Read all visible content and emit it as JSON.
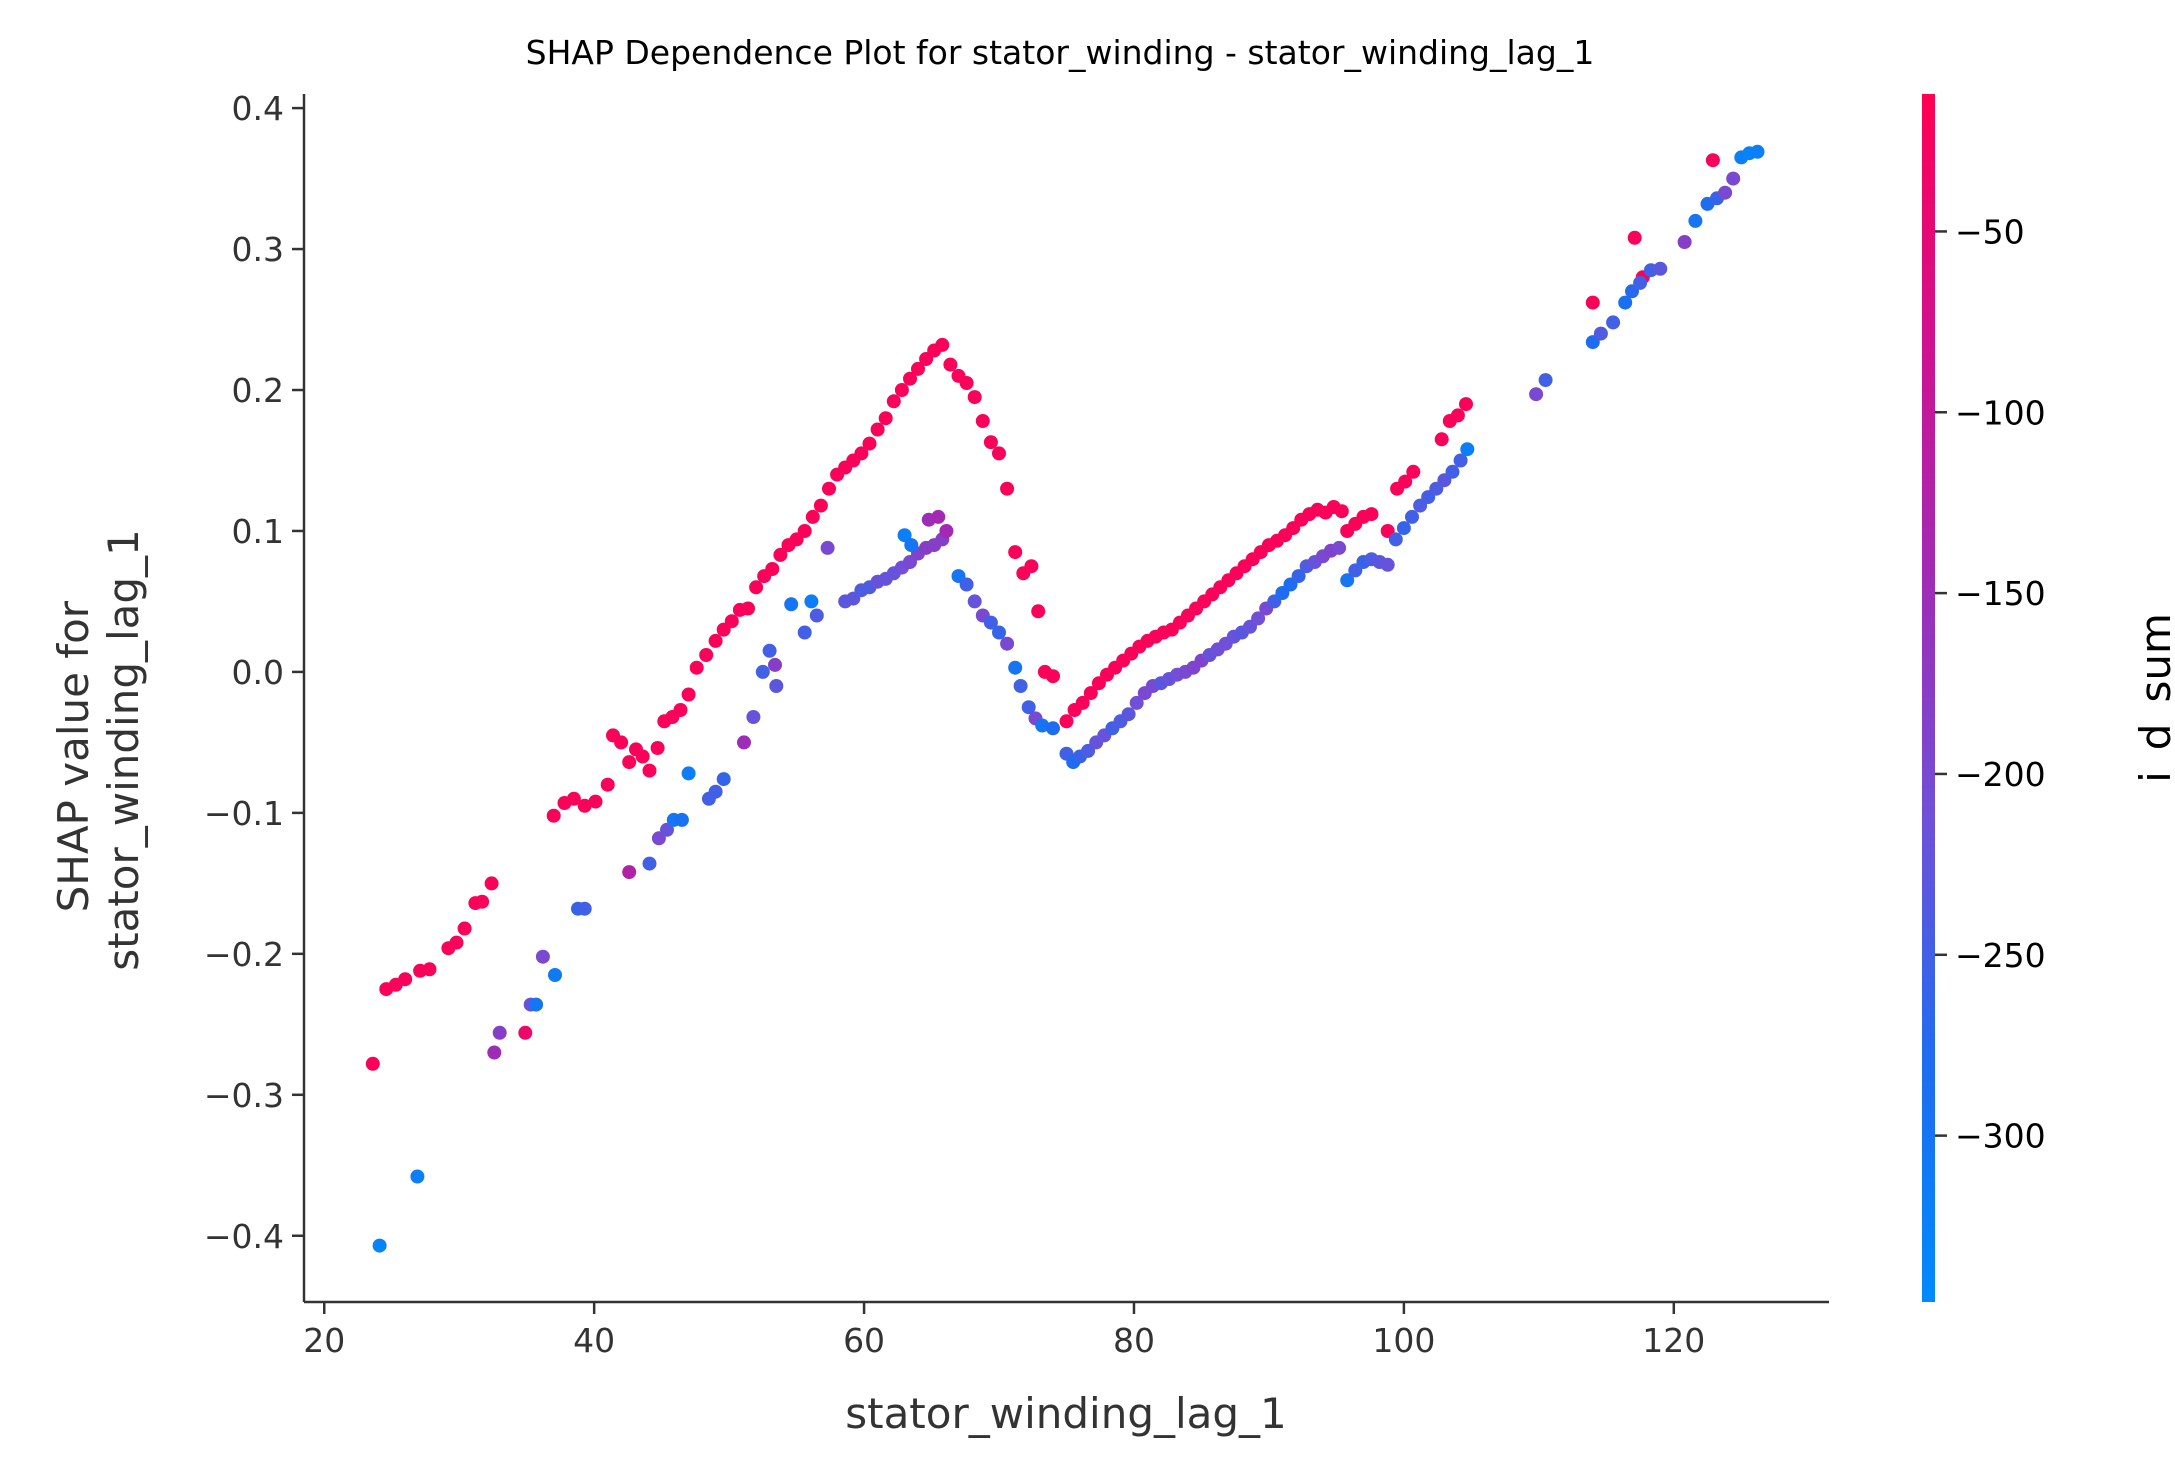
{
  "chart_data": {
    "type": "scatter",
    "title": "SHAP Dependence Plot for stator_winding - stator_winding_lag_1",
    "xlabel": "stator_winding_lag_1",
    "ylabel_lines": [
      "SHAP value for",
      "stator_winding_lag_1"
    ],
    "xlim": [
      18.5,
      131.5
    ],
    "ylim": [
      -0.447,
      0.41
    ],
    "xticks": [
      20,
      40,
      60,
      80,
      100,
      120
    ],
    "xtick_labels": [
      "20",
      "40",
      "60",
      "80",
      "100",
      "120"
    ],
    "yticks": [
      0.4,
      0.3,
      0.2,
      0.1,
      0.0,
      -0.1,
      -0.2,
      -0.3,
      -0.4
    ],
    "ytick_labels": [
      "0.4",
      "0.3",
      "0.2",
      "0.1",
      "0.0",
      "−0.1",
      "−0.2",
      "−0.3",
      "−0.4"
    ],
    "grid": false,
    "colorbar": {
      "label": "i_d_sum",
      "range": [
        -346,
        -12
      ],
      "ticks": [
        -50,
        -100,
        -150,
        -200,
        -250,
        -300
      ],
      "tick_labels": [
        "−50",
        "−100",
        "−150",
        "−200",
        "−250",
        "−300"
      ],
      "colors": [
        "#008afb",
        "#1e6cf0",
        "#7050d8",
        "#a02bb5",
        "#d1108e",
        "#ff0052"
      ]
    },
    "points": [
      [
        23.6,
        -0.278,
        -20
      ],
      [
        24.6,
        -0.225,
        -20
      ],
      [
        25.3,
        -0.222,
        -20
      ],
      [
        26.0,
        -0.218,
        -20
      ],
      [
        27.1,
        -0.212,
        -20
      ],
      [
        27.8,
        -0.211,
        -20
      ],
      [
        29.2,
        -0.196,
        -20
      ],
      [
        29.8,
        -0.192,
        -20
      ],
      [
        30.4,
        -0.182,
        -20
      ],
      [
        31.2,
        -0.164,
        -20
      ],
      [
        31.7,
        -0.163,
        -20
      ],
      [
        32.4,
        -0.15,
        -20
      ],
      [
        34.9,
        -0.256,
        -40
      ],
      [
        37.0,
        -0.102,
        -20
      ],
      [
        37.8,
        -0.093,
        -20
      ],
      [
        38.5,
        -0.09,
        -20
      ],
      [
        39.3,
        -0.095,
        -20
      ],
      [
        40.1,
        -0.092,
        -20
      ],
      [
        41.0,
        -0.08,
        -20
      ],
      [
        41.4,
        -0.045,
        -20
      ],
      [
        42.0,
        -0.05,
        -20
      ],
      [
        42.6,
        -0.064,
        -20
      ],
      [
        43.1,
        -0.055,
        -20
      ],
      [
        43.6,
        -0.06,
        -20
      ],
      [
        44.1,
        -0.07,
        -20
      ],
      [
        44.7,
        -0.054,
        -20
      ],
      [
        45.2,
        -0.035,
        -20
      ],
      [
        45.8,
        -0.032,
        -20
      ],
      [
        46.4,
        -0.027,
        -20
      ],
      [
        47.0,
        -0.016,
        -20
      ],
      [
        47.6,
        0.003,
        -20
      ],
      [
        48.3,
        0.012,
        -20
      ],
      [
        49.0,
        0.022,
        -20
      ],
      [
        49.6,
        0.03,
        -20
      ],
      [
        50.2,
        0.036,
        -20
      ],
      [
        50.8,
        0.044,
        -20
      ],
      [
        51.4,
        0.045,
        -20
      ],
      [
        52.0,
        0.06,
        -20
      ],
      [
        52.6,
        0.068,
        -20
      ],
      [
        53.2,
        0.073,
        -20
      ],
      [
        53.8,
        0.083,
        -20
      ],
      [
        54.4,
        0.09,
        -20
      ],
      [
        55.0,
        0.094,
        -20
      ],
      [
        55.6,
        0.1,
        -20
      ],
      [
        56.2,
        0.11,
        -20
      ],
      [
        56.8,
        0.118,
        -20
      ],
      [
        57.4,
        0.13,
        -20
      ],
      [
        58.0,
        0.14,
        -20
      ],
      [
        58.6,
        0.145,
        -20
      ],
      [
        59.2,
        0.15,
        -20
      ],
      [
        59.8,
        0.155,
        -20
      ],
      [
        60.4,
        0.162,
        -20
      ],
      [
        61.0,
        0.172,
        -20
      ],
      [
        61.6,
        0.18,
        -20
      ],
      [
        62.2,
        0.192,
        -20
      ],
      [
        62.8,
        0.2,
        -20
      ],
      [
        63.4,
        0.208,
        -20
      ],
      [
        64.0,
        0.215,
        -20
      ],
      [
        64.6,
        0.222,
        -20
      ],
      [
        65.2,
        0.228,
        -20
      ],
      [
        65.8,
        0.232,
        -20
      ],
      [
        66.4,
        0.218,
        -20
      ],
      [
        67.0,
        0.21,
        -20
      ],
      [
        67.6,
        0.205,
        -20
      ],
      [
        68.2,
        0.195,
        -20
      ],
      [
        68.8,
        0.178,
        -20
      ],
      [
        69.4,
        0.163,
        -20
      ],
      [
        70.0,
        0.155,
        -20
      ],
      [
        70.6,
        0.13,
        -20
      ],
      [
        71.2,
        0.085,
        -20
      ],
      [
        71.8,
        0.07,
        -20
      ],
      [
        72.4,
        0.075,
        -20
      ],
      [
        72.9,
        0.043,
        -20
      ],
      [
        73.4,
        0.0,
        -20
      ],
      [
        74.0,
        -0.003,
        -20
      ],
      [
        75.0,
        -0.035,
        -20
      ],
      [
        75.6,
        -0.027,
        -20
      ],
      [
        76.2,
        -0.022,
        -20
      ],
      [
        76.8,
        -0.015,
        -20
      ],
      [
        77.4,
        -0.008,
        -20
      ],
      [
        78.0,
        -0.002,
        -20
      ],
      [
        78.6,
        0.003,
        -20
      ],
      [
        79.2,
        0.008,
        -20
      ],
      [
        79.8,
        0.013,
        -20
      ],
      [
        80.4,
        0.018,
        -20
      ],
      [
        81.0,
        0.022,
        -20
      ],
      [
        81.6,
        0.025,
        -20
      ],
      [
        82.2,
        0.028,
        -20
      ],
      [
        82.8,
        0.03,
        -20
      ],
      [
        83.4,
        0.035,
        -20
      ],
      [
        84.0,
        0.04,
        -20
      ],
      [
        84.6,
        0.045,
        -20
      ],
      [
        85.2,
        0.05,
        -20
      ],
      [
        85.8,
        0.055,
        -20
      ],
      [
        86.4,
        0.06,
        -20
      ],
      [
        87.0,
        0.065,
        -20
      ],
      [
        87.6,
        0.07,
        -20
      ],
      [
        88.2,
        0.075,
        -20
      ],
      [
        88.8,
        0.08,
        -20
      ],
      [
        89.4,
        0.085,
        -20
      ],
      [
        90.0,
        0.09,
        -20
      ],
      [
        90.6,
        0.093,
        -20
      ],
      [
        91.2,
        0.097,
        -20
      ],
      [
        91.8,
        0.102,
        -20
      ],
      [
        92.4,
        0.108,
        -20
      ],
      [
        93.0,
        0.112,
        -20
      ],
      [
        93.6,
        0.115,
        -20
      ],
      [
        94.2,
        0.113,
        -20
      ],
      [
        94.8,
        0.117,
        -20
      ],
      [
        95.4,
        0.114,
        -20
      ],
      [
        95.8,
        0.1,
        -20
      ],
      [
        96.4,
        0.105,
        -20
      ],
      [
        97.0,
        0.11,
        -20
      ],
      [
        97.6,
        0.112,
        -20
      ],
      [
        98.8,
        0.1,
        -20
      ],
      [
        99.5,
        0.13,
        -20
      ],
      [
        100.1,
        0.135,
        -20
      ],
      [
        100.7,
        0.142,
        -20
      ],
      [
        102.8,
        0.165,
        -20
      ],
      [
        103.4,
        0.178,
        -20
      ],
      [
        104.0,
        0.182,
        -20
      ],
      [
        104.6,
        0.19,
        -20
      ],
      [
        114.0,
        0.262,
        -20
      ],
      [
        117.1,
        0.308,
        -20
      ],
      [
        117.7,
        0.28,
        -20
      ],
      [
        122.9,
        0.363,
        -20
      ],
      [
        24.1,
        -0.407,
        -330
      ],
      [
        26.9,
        -0.358,
        -320
      ],
      [
        32.6,
        -0.27,
        -150
      ],
      [
        33.0,
        -0.256,
        -180
      ],
      [
        35.3,
        -0.236,
        -220
      ],
      [
        35.7,
        -0.236,
        -300
      ],
      [
        36.2,
        -0.202,
        -200
      ],
      [
        37.1,
        -0.215,
        -310
      ],
      [
        38.8,
        -0.168,
        -260
      ],
      [
        39.3,
        -0.168,
        -250
      ],
      [
        42.6,
        -0.142,
        -120
      ],
      [
        44.1,
        -0.136,
        -250
      ],
      [
        44.8,
        -0.118,
        -200
      ],
      [
        45.4,
        -0.112,
        -220
      ],
      [
        45.9,
        -0.105,
        -300
      ],
      [
        46.5,
        -0.105,
        -290
      ],
      [
        47.0,
        -0.072,
        -320
      ],
      [
        48.5,
        -0.09,
        -250
      ],
      [
        49.0,
        -0.085,
        -250
      ],
      [
        49.6,
        -0.076,
        -260
      ],
      [
        51.1,
        -0.05,
        -150
      ],
      [
        51.8,
        -0.032,
        -220
      ],
      [
        52.5,
        0.0,
        -250
      ],
      [
        53.0,
        0.015,
        -250
      ],
      [
        53.4,
        0.005,
        -180
      ],
      [
        53.5,
        -0.01,
        -230
      ],
      [
        54.6,
        0.048,
        -300
      ],
      [
        55.6,
        0.028,
        -250
      ],
      [
        56.1,
        0.05,
        -320
      ],
      [
        56.5,
        0.04,
        -240
      ],
      [
        57.3,
        0.088,
        -200
      ],
      [
        58.6,
        0.05,
        -230
      ],
      [
        59.2,
        0.052,
        -230
      ],
      [
        59.8,
        0.058,
        -240
      ],
      [
        60.4,
        0.06,
        -240
      ],
      [
        61.0,
        0.064,
        -220
      ],
      [
        61.6,
        0.066,
        -220
      ],
      [
        62.2,
        0.07,
        -220
      ],
      [
        62.8,
        0.074,
        -210
      ],
      [
        63.4,
        0.078,
        -200
      ],
      [
        64.0,
        0.084,
        -190
      ],
      [
        64.6,
        0.088,
        -180
      ],
      [
        65.2,
        0.09,
        -180
      ],
      [
        65.8,
        0.094,
        -180
      ],
      [
        63.0,
        0.097,
        -320
      ],
      [
        63.5,
        0.09,
        -300
      ],
      [
        64.8,
        0.108,
        -150
      ],
      [
        65.5,
        0.11,
        -140
      ],
      [
        66.1,
        0.1,
        -140
      ],
      [
        67.0,
        0.068,
        -300
      ],
      [
        67.6,
        0.062,
        -250
      ],
      [
        68.2,
        0.05,
        -220
      ],
      [
        68.8,
        0.04,
        -200
      ],
      [
        69.4,
        0.035,
        -250
      ],
      [
        70.0,
        0.028,
        -260
      ],
      [
        70.6,
        0.02,
        -200
      ],
      [
        71.2,
        0.003,
        -300
      ],
      [
        71.6,
        -0.01,
        -250
      ],
      [
        72.2,
        -0.025,
        -250
      ],
      [
        72.7,
        -0.033,
        -200
      ],
      [
        73.2,
        -0.038,
        -300
      ],
      [
        74.0,
        -0.04,
        -280
      ],
      [
        75.0,
        -0.058,
        -250
      ],
      [
        75.5,
        -0.064,
        -280
      ],
      [
        76.0,
        -0.06,
        -260
      ],
      [
        76.6,
        -0.056,
        -240
      ],
      [
        77.2,
        -0.05,
        -220
      ],
      [
        77.8,
        -0.045,
        -220
      ],
      [
        78.4,
        -0.04,
        -250
      ],
      [
        79.0,
        -0.035,
        -240
      ],
      [
        79.6,
        -0.03,
        -230
      ],
      [
        80.2,
        -0.022,
        -210
      ],
      [
        80.8,
        -0.015,
        -200
      ],
      [
        81.4,
        -0.01,
        -200
      ],
      [
        82.0,
        -0.008,
        -230
      ],
      [
        82.6,
        -0.005,
        -220
      ],
      [
        83.2,
        -0.002,
        -210
      ],
      [
        83.8,
        0.0,
        -200
      ],
      [
        84.4,
        0.003,
        -190
      ],
      [
        85.0,
        0.008,
        -190
      ],
      [
        85.6,
        0.012,
        -220
      ],
      [
        86.2,
        0.016,
        -210
      ],
      [
        86.8,
        0.02,
        -210
      ],
      [
        87.4,
        0.025,
        -220
      ],
      [
        88.0,
        0.028,
        -230
      ],
      [
        88.6,
        0.032,
        -220
      ],
      [
        89.2,
        0.038,
        -210
      ],
      [
        89.8,
        0.045,
        -200
      ],
      [
        90.4,
        0.05,
        -250
      ],
      [
        91.0,
        0.056,
        -280
      ],
      [
        91.6,
        0.062,
        -280
      ],
      [
        92.2,
        0.068,
        -260
      ],
      [
        92.8,
        0.075,
        -240
      ],
      [
        93.4,
        0.078,
        -220
      ],
      [
        94.0,
        0.082,
        -200
      ],
      [
        94.6,
        0.086,
        -190
      ],
      [
        95.2,
        0.088,
        -200
      ],
      [
        95.8,
        0.065,
        -300
      ],
      [
        96.4,
        0.072,
        -250
      ],
      [
        97.0,
        0.078,
        -260
      ],
      [
        97.6,
        0.08,
        -240
      ],
      [
        98.2,
        0.078,
        -230
      ],
      [
        98.8,
        0.076,
        -220
      ],
      [
        99.4,
        0.094,
        -250
      ],
      [
        100.0,
        0.102,
        -260
      ],
      [
        100.6,
        0.11,
        -250
      ],
      [
        101.2,
        0.118,
        -240
      ],
      [
        101.8,
        0.124,
        -250
      ],
      [
        102.4,
        0.13,
        -240
      ],
      [
        103.0,
        0.136,
        -230
      ],
      [
        103.6,
        0.142,
        -250
      ],
      [
        104.2,
        0.15,
        -250
      ],
      [
        104.7,
        0.158,
        -320
      ],
      [
        109.8,
        0.197,
        -200
      ],
      [
        110.5,
        0.207,
        -250
      ],
      [
        114.0,
        0.234,
        -280
      ],
      [
        114.6,
        0.24,
        -240
      ],
      [
        115.5,
        0.248,
        -250
      ],
      [
        116.4,
        0.262,
        -290
      ],
      [
        116.9,
        0.27,
        -270
      ],
      [
        117.5,
        0.276,
        -250
      ],
      [
        118.3,
        0.285,
        -250
      ],
      [
        119.0,
        0.286,
        -230
      ],
      [
        120.8,
        0.305,
        -180
      ],
      [
        121.6,
        0.32,
        -300
      ],
      [
        122.5,
        0.332,
        -280
      ],
      [
        123.2,
        0.336,
        -260
      ],
      [
        123.8,
        0.34,
        -200
      ],
      [
        124.4,
        0.35,
        -200
      ],
      [
        125.0,
        0.365,
        -320
      ],
      [
        125.6,
        0.368,
        -330
      ],
      [
        126.2,
        0.369,
        -320
      ]
    ]
  }
}
